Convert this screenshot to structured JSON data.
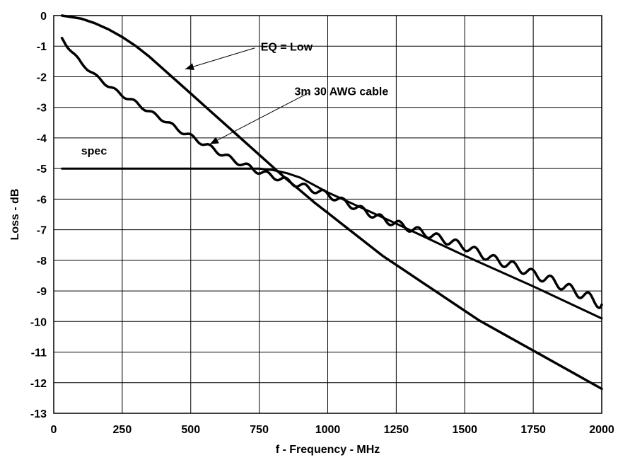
{
  "chart_data": {
    "type": "line",
    "title": "",
    "xlabel": "f - Frequency - MHz",
    "ylabel": "Loss - dB",
    "xlim": [
      0,
      2000
    ],
    "ylim": [
      -13,
      0
    ],
    "xticks": [
      0,
      250,
      500,
      750,
      1000,
      1250,
      1500,
      1750,
      2000
    ],
    "yticks": [
      0,
      -1,
      -2,
      -3,
      -4,
      -5,
      -6,
      -7,
      -8,
      -9,
      -10,
      -11,
      -12,
      -13
    ],
    "xtick_labels": [
      "0",
      "250",
      "500",
      "750",
      "1000",
      "1250",
      "1500",
      "1750",
      "2000"
    ],
    "ytick_labels": [
      "0",
      "-1",
      "-2",
      "-3",
      "-4",
      "-5",
      "-6",
      "-7",
      "-8",
      "-9",
      "-10",
      "-11",
      "-12",
      "-13"
    ],
    "grid": true,
    "legend": "none",
    "series": [
      {
        "name": "EQ = Low",
        "x": [
          30,
          100,
          150,
          200,
          250,
          300,
          350,
          400,
          450,
          500,
          550,
          600,
          650,
          700,
          750,
          800,
          850,
          900,
          950,
          1000,
          1050,
          1100,
          1150,
          1200,
          1250,
          1300,
          1350,
          1400,
          1450,
          1500,
          1550,
          1600,
          1650,
          1700,
          1750,
          1800,
          1850,
          1900,
          1950,
          2000
        ],
        "y": [
          0,
          -0.1,
          -0.25,
          -0.45,
          -0.7,
          -1.0,
          -1.35,
          -1.75,
          -2.15,
          -2.55,
          -2.95,
          -3.35,
          -3.75,
          -4.15,
          -4.55,
          -4.95,
          -5.35,
          -5.72,
          -6.1,
          -6.45,
          -6.8,
          -7.15,
          -7.5,
          -7.85,
          -8.15,
          -8.45,
          -8.75,
          -9.05,
          -9.35,
          -9.65,
          -9.95,
          -10.2,
          -10.45,
          -10.7,
          -10.95,
          -11.2,
          -11.45,
          -11.7,
          -11.95,
          -12.2
        ]
      },
      {
        "name": "3m 30 AWG cable",
        "x": [
          30,
          50,
          100,
          150,
          200,
          250,
          300,
          350,
          400,
          450,
          500,
          550,
          600,
          650,
          700,
          750,
          800,
          850,
          900,
          950,
          1000,
          1050,
          1100,
          1150,
          1200,
          1250,
          1300,
          1350,
          1400,
          1450,
          1500,
          1550,
          1600,
          1650,
          1700,
          1750,
          1800,
          1850,
          1900,
          1950,
          2000
        ],
        "y": [
          -0.75,
          -1.0,
          -1.55,
          -1.95,
          -2.3,
          -2.6,
          -2.85,
          -3.15,
          -3.4,
          -3.7,
          -3.95,
          -4.2,
          -4.45,
          -4.7,
          -4.9,
          -5.1,
          -5.25,
          -5.4,
          -5.55,
          -5.7,
          -5.85,
          -6.05,
          -6.25,
          -6.45,
          -6.65,
          -6.8,
          -6.95,
          -7.1,
          -7.25,
          -7.4,
          -7.55,
          -7.75,
          -7.95,
          -8.1,
          -8.25,
          -8.45,
          -8.6,
          -8.8,
          -9.0,
          -9.2,
          -9.45
        ],
        "ripple": true
      },
      {
        "name": "spec",
        "x": [
          30,
          750,
          800,
          850,
          900,
          1000,
          1250,
          1500,
          1750,
          2000
        ],
        "y": [
          -5.0,
          -5.0,
          -5.05,
          -5.15,
          -5.3,
          -5.78,
          -6.8,
          -7.85,
          -8.85,
          -9.9
        ]
      }
    ],
    "annotations": [
      {
        "text": "EQ = Low",
        "x": 850,
        "y": -1.15,
        "arrow_to": [
          480,
          -1.75
        ]
      },
      {
        "text": "3m 30 AWG cable",
        "x": 1050,
        "y": -2.6,
        "arrow_to": [
          570,
          -4.2
        ]
      },
      {
        "text": "spec",
        "x": 100,
        "y": -4.55
      }
    ]
  }
}
